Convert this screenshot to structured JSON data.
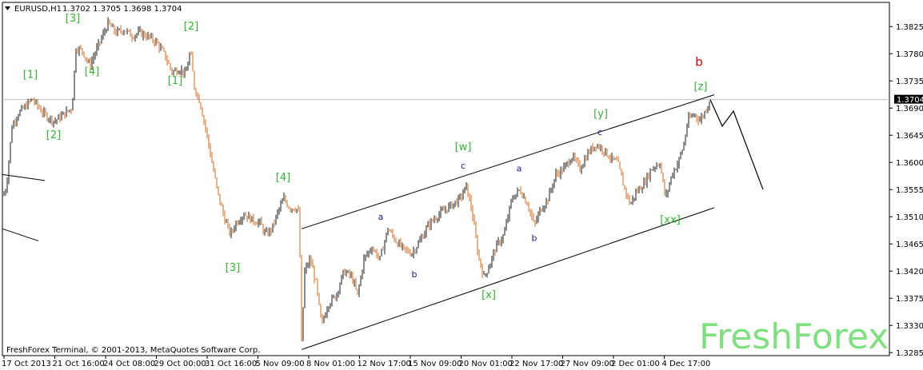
{
  "header": {
    "symbol_label": "EURUSD,H1",
    "ohlc_label": "1.3702 1.3705 1.3698 1.3704"
  },
  "footer": {
    "copyright": "FreshForex Terminal, © 2001-2013, MetaQuotes Software Corp."
  },
  "watermark": "FreshForex",
  "colors": {
    "bull": "#1a1a1a",
    "bear": "#d2691e",
    "wave_green": "#2fb82f",
    "wave_blue": "#1a1aa0",
    "wave_red": "#e00000",
    "price_tag_bg": "#000000"
  },
  "chart_data": {
    "type": "candlestick",
    "y_ticks": [
      "1.3825",
      "1.3780",
      "1.3735",
      "1.3690",
      "1.3645",
      "1.3600",
      "1.3555",
      "1.3510",
      "1.3465",
      "1.3420",
      "1.3375",
      "1.3330",
      "1.3285"
    ],
    "ylim": [
      1.328,
      1.3865
    ],
    "current_price": "1.3704",
    "x_ticks": [
      "17 Oct 2013",
      "21 Oct 16:00",
      "24 Oct 08:00",
      "29 Oct 00:00",
      "31 Oct 16:00",
      "5 Nov 09:00",
      "8 Nov 01:00",
      "12 Nov 17:00",
      "15 Nov 09:00",
      "20 Nov 01:00",
      "22 Nov 17:00",
      "27 Nov 09:00",
      "2 Dec 01:00",
      "4 Dec 17:00"
    ],
    "price_path": [
      [
        0,
        1.353
      ],
      [
        8,
        1.356
      ],
      [
        15,
        1.366
      ],
      [
        22,
        1.368
      ],
      [
        30,
        1.369
      ],
      [
        40,
        1.3705
      ],
      [
        55,
        1.368
      ],
      [
        68,
        1.3668
      ],
      [
        80,
        1.368
      ],
      [
        90,
        1.369
      ],
      [
        95,
        1.379
      ],
      [
        103,
        1.3785
      ],
      [
        112,
        1.376
      ],
      [
        125,
        1.38
      ],
      [
        135,
        1.383
      ],
      [
        145,
        1.3815
      ],
      [
        155,
        1.382
      ],
      [
        165,
        1.381
      ],
      [
        175,
        1.3815
      ],
      [
        185,
        1.3808
      ],
      [
        195,
        1.38
      ],
      [
        205,
        1.378
      ],
      [
        215,
        1.375
      ],
      [
        225,
        1.3755
      ],
      [
        232,
        1.3745
      ],
      [
        238,
        1.3785
      ],
      [
        243,
        1.3725
      ],
      [
        250,
        1.37
      ],
      [
        258,
        1.365
      ],
      [
        265,
        1.36
      ],
      [
        272,
        1.355
      ],
      [
        280,
        1.351
      ],
      [
        288,
        1.348
      ],
      [
        295,
        1.35
      ],
      [
        305,
        1.3515
      ],
      [
        315,
        1.3505
      ],
      [
        325,
        1.35
      ],
      [
        332,
        1.348
      ],
      [
        340,
        1.349
      ],
      [
        348,
        1.352
      ],
      [
        355,
        1.354
      ],
      [
        362,
        1.3525
      ],
      [
        370,
        1.3525
      ],
      [
        374,
        1.3515
      ],
      [
        377,
        1.33
      ],
      [
        381,
        1.342
      ],
      [
        388,
        1.344
      ],
      [
        395,
        1.34
      ],
      [
        402,
        1.333
      ],
      [
        410,
        1.3365
      ],
      [
        420,
        1.338
      ],
      [
        430,
        1.342
      ],
      [
        440,
        1.341
      ],
      [
        447,
        1.338
      ],
      [
        455,
        1.344
      ],
      [
        465,
        1.346
      ],
      [
        475,
        1.344
      ],
      [
        485,
        1.349
      ],
      [
        495,
        1.347
      ],
      [
        505,
        1.3455
      ],
      [
        515,
        1.345
      ],
      [
        525,
        1.347
      ],
      [
        535,
        1.3495
      ],
      [
        545,
        1.351
      ],
      [
        555,
        1.352
      ],
      [
        565,
        1.353
      ],
      [
        575,
        1.354
      ],
      [
        583,
        1.356
      ],
      [
        590,
        1.352
      ],
      [
        598,
        1.3445
      ],
      [
        605,
        1.341
      ],
      [
        612,
        1.343
      ],
      [
        620,
        1.346
      ],
      [
        630,
        1.348
      ],
      [
        640,
        1.354
      ],
      [
        650,
        1.3555
      ],
      [
        660,
        1.353
      ],
      [
        668,
        1.3495
      ],
      [
        675,
        1.352
      ],
      [
        685,
        1.354
      ],
      [
        695,
        1.358
      ],
      [
        705,
        1.359
      ],
      [
        715,
        1.361
      ],
      [
        725,
        1.359
      ],
      [
        735,
        1.3615
      ],
      [
        745,
        1.363
      ],
      [
        755,
        1.362
      ],
      [
        765,
        1.3605
      ],
      [
        772,
        1.36
      ],
      [
        780,
        1.356
      ],
      [
        788,
        1.353
      ],
      [
        795,
        1.355
      ],
      [
        805,
        1.3565
      ],
      [
        815,
        1.359
      ],
      [
        825,
        1.36
      ],
      [
        832,
        1.354
      ],
      [
        840,
        1.358
      ],
      [
        848,
        1.36
      ],
      [
        855,
        1.363
      ],
      [
        860,
        1.367
      ],
      [
        868,
        1.368
      ],
      [
        875,
        1.367
      ],
      [
        882,
        1.3685
      ],
      [
        887,
        1.3704
      ]
    ],
    "channel": [
      {
        "name": "upper",
        "points": [
          [
            "8 Nov 01:00",
            1.349
          ],
          [
            "4 Dec 17:00",
            1.3712
          ]
        ]
      },
      {
        "name": "lower",
        "points": [
          [
            "8 Nov 01:00",
            1.329
          ],
          [
            "4 Dec 17:00",
            1.3525
          ]
        ]
      }
    ],
    "left_lines": [
      {
        "points": [
          [
            1.358
          ],
          [
            1.357
          ]
        ]
      },
      {
        "points": [
          [
            1.349
          ],
          [
            1.347
          ]
        ]
      }
    ],
    "projection": [
      [
        1.3704
      ],
      [
        1.366
      ],
      [
        1.3685
      ],
      [
        1.3555
      ]
    ],
    "wave_labels": [
      {
        "text": "[1]",
        "x": 38,
        "y": 1.374,
        "color": "green"
      },
      {
        "text": "[2]",
        "x": 67,
        "y": 1.364,
        "color": "green"
      },
      {
        "text": "[3]",
        "x": 91,
        "y": 1.3833,
        "color": "green"
      },
      {
        "text": "[4]",
        "x": 115,
        "y": 1.3745,
        "color": "green"
      },
      {
        "text": "[2]",
        "x": 239,
        "y": 1.382,
        "color": "green"
      },
      {
        "text": "[1]",
        "x": 219,
        "y": 1.373,
        "color": "green"
      },
      {
        "text": "[4]",
        "x": 354,
        "y": 1.357,
        "color": "green"
      },
      {
        "text": "[3]",
        "x": 291,
        "y": 1.342,
        "color": "green"
      },
      {
        "text": "[w]",
        "x": 579,
        "y": 1.362,
        "color": "green"
      },
      {
        "text": "[x]",
        "x": 611,
        "y": 1.3375,
        "color": "green"
      },
      {
        "text": "[y]",
        "x": 751,
        "y": 1.3675,
        "color": "green"
      },
      {
        "text": "[xx]",
        "x": 838,
        "y": 1.35,
        "color": "green"
      },
      {
        "text": "[z]",
        "x": 876,
        "y": 1.372,
        "color": "green"
      },
      {
        "text": "a",
        "x": 476,
        "y": 1.3505,
        "color": "blue"
      },
      {
        "text": "b",
        "x": 518,
        "y": 1.341,
        "color": "blue"
      },
      {
        "text": "c",
        "x": 579,
        "y": 1.359,
        "color": "blue"
      },
      {
        "text": "a",
        "x": 649,
        "y": 1.3585,
        "color": "blue"
      },
      {
        "text": "b",
        "x": 668,
        "y": 1.347,
        "color": "blue"
      },
      {
        "text": "c",
        "x": 750,
        "y": 1.3645,
        "color": "blue"
      },
      {
        "text": "b",
        "x": 874,
        "y": 1.376,
        "color": "red"
      }
    ]
  }
}
